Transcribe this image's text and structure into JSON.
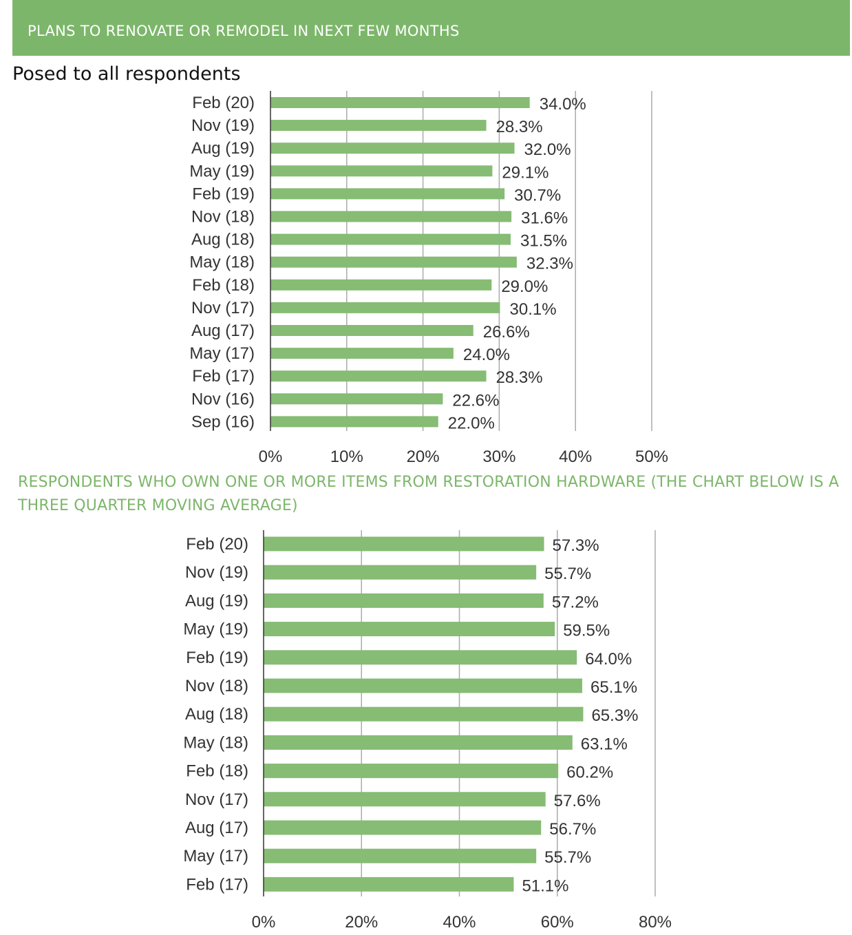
{
  "header": {
    "title": "PLANS TO RENOVATE OR REMODEL IN NEXT FEW MONTHS"
  },
  "subtitle": "Posed to all respondents",
  "section2": {
    "title": "RESPONDENTS WHO OWN ONE OR MORE ITEMS FROM RESTORATION HARDWARE (THE CHART BELOW IS A THREE QUARTER MOVING AVERAGE)"
  },
  "colors": {
    "bar": "#86bc73",
    "header": "#7cb66a",
    "axis": "#333333",
    "grid": "#aaaaaa"
  },
  "chart_data": [
    {
      "type": "bar",
      "orientation": "horizontal",
      "categories": [
        "Feb (20)",
        "Nov (19)",
        "Aug (19)",
        "May (19)",
        "Feb (19)",
        "Nov (18)",
        "Aug (18)",
        "May (18)",
        "Feb (18)",
        "Nov (17)",
        "Aug (17)",
        "May (17)",
        "Feb (17)",
        "Nov (16)",
        "Sep (16)"
      ],
      "values": [
        34.0,
        28.3,
        32.0,
        29.1,
        30.7,
        31.6,
        31.5,
        32.3,
        29.0,
        30.1,
        26.6,
        24.0,
        28.3,
        22.6,
        22.0
      ],
      "value_labels": [
        "34.0%",
        "28.3%",
        "32.0%",
        "29.1%",
        "30.7%",
        "31.6%",
        "31.5%",
        "32.3%",
        "29.0%",
        "30.1%",
        "26.6%",
        "24.0%",
        "28.3%",
        "22.6%",
        "22.0%"
      ],
      "xlim": [
        0,
        50
      ],
      "ticks": [
        0,
        10,
        20,
        30,
        40,
        50
      ],
      "tick_labels": [
        "0%",
        "10%",
        "20%",
        "30%",
        "40%",
        "50%"
      ],
      "grid": true
    },
    {
      "type": "bar",
      "orientation": "horizontal",
      "categories": [
        "Feb (20)",
        "Nov (19)",
        "Aug (19)",
        "May (19)",
        "Feb (19)",
        "Nov (18)",
        "Aug (18)",
        "May (18)",
        "Feb (18)",
        "Nov (17)",
        "Aug (17)",
        "May (17)",
        "Feb (17)"
      ],
      "values": [
        57.3,
        55.7,
        57.2,
        59.5,
        64.0,
        65.1,
        65.3,
        63.1,
        60.2,
        57.6,
        56.7,
        55.7,
        51.1
      ],
      "value_labels": [
        "57.3%",
        "55.7%",
        "57.2%",
        "59.5%",
        "64.0%",
        "65.1%",
        "65.3%",
        "63.1%",
        "60.2%",
        "57.6%",
        "56.7%",
        "55.7%",
        "51.1%"
      ],
      "xlim": [
        0,
        80
      ],
      "ticks": [
        0,
        20,
        40,
        60,
        80
      ],
      "tick_labels": [
        "0%",
        "20%",
        "40%",
        "60%",
        "80%"
      ],
      "grid": true
    }
  ]
}
